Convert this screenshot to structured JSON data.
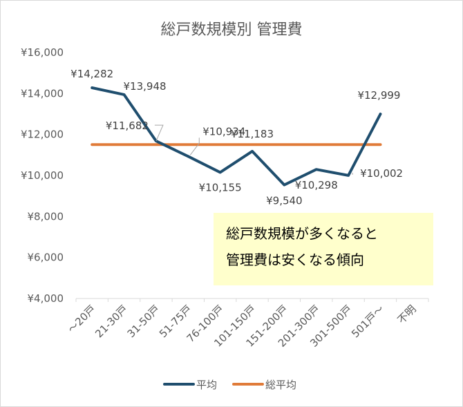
{
  "chart_data": {
    "type": "line",
    "title": "総戸数規模別 管理費",
    "categories": [
      "～20戸",
      "21-30戸",
      "31-50戸",
      "51-75戸",
      "76-100戸",
      "101-150戸",
      "151-200戸",
      "201-300戸",
      "301-500戸",
      "501戸～",
      "不明"
    ],
    "ylim": [
      4000,
      16000
    ],
    "yticks": [
      "¥4,000",
      "¥6,000",
      "¥8,000",
      "¥10,000",
      "¥12,000",
      "¥14,000",
      "¥16,000"
    ],
    "ytick_values": [
      4000,
      6000,
      8000,
      10000,
      12000,
      14000,
      16000
    ],
    "grid": false,
    "legend_position": "bottom",
    "series": [
      {
        "name": "平均",
        "color": "#1f4e6e",
        "values": [
          14282,
          13948,
          11682,
          10934,
          10155,
          11183,
          9540,
          10298,
          10002,
          12999,
          null
        ],
        "labels": [
          "¥14,282",
          "¥13,948",
          "¥11,682",
          "¥10,934",
          "¥10,155",
          "¥11,183",
          "¥9,540",
          "¥10,298",
          "¥10,002",
          "¥12,999",
          ""
        ]
      },
      {
        "name": "総平均",
        "color": "#e07b39",
        "values": [
          11510,
          11510,
          11510,
          11510,
          11510,
          11510,
          11510,
          11510,
          11510,
          11510,
          null
        ]
      }
    ],
    "annotation": [
      "総戸数規模が多くなると",
      "管理費は安くなる傾向"
    ]
  }
}
